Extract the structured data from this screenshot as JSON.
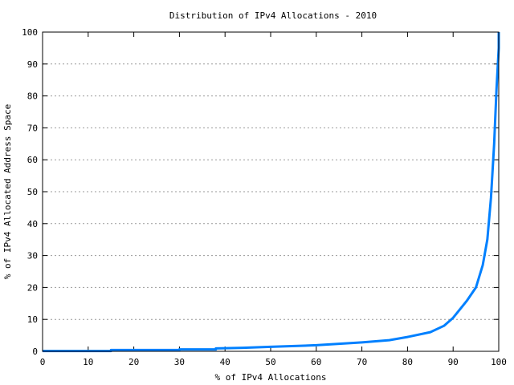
{
  "chart_data": {
    "type": "line",
    "title": "Distribution of IPv4 Allocations - 2010",
    "xlabel": "% of IPv4 Allocations",
    "ylabel": "% of IPv4 Allocated Address Space",
    "xlim": [
      0,
      100
    ],
    "ylim": [
      0,
      100
    ],
    "xticks": [
      "0",
      "10",
      "20",
      "30",
      "40",
      "50",
      "60",
      "70",
      "80",
      "90",
      "100"
    ],
    "yticks": [
      "0",
      "10",
      "20",
      "30",
      "40",
      "50",
      "60",
      "70",
      "80",
      "90",
      "100"
    ],
    "grid": "horizontal dashed",
    "line_color": "#0080ff",
    "series": [
      {
        "x": [
          0,
          15,
          15,
          30,
          30,
          38,
          38,
          44,
          50,
          60,
          70,
          76,
          80,
          85,
          88,
          90,
          93,
          95,
          96.5,
          97.5,
          98.3,
          99,
          99.5,
          100,
          100
        ],
        "y": [
          0.1,
          0.1,
          0.4,
          0.4,
          0.6,
          0.6,
          0.9,
          1.1,
          1.4,
          1.9,
          2.8,
          3.5,
          4.5,
          6,
          8,
          10.5,
          15.8,
          20,
          27,
          35,
          48,
          65,
          82,
          95,
          100
        ]
      }
    ]
  }
}
